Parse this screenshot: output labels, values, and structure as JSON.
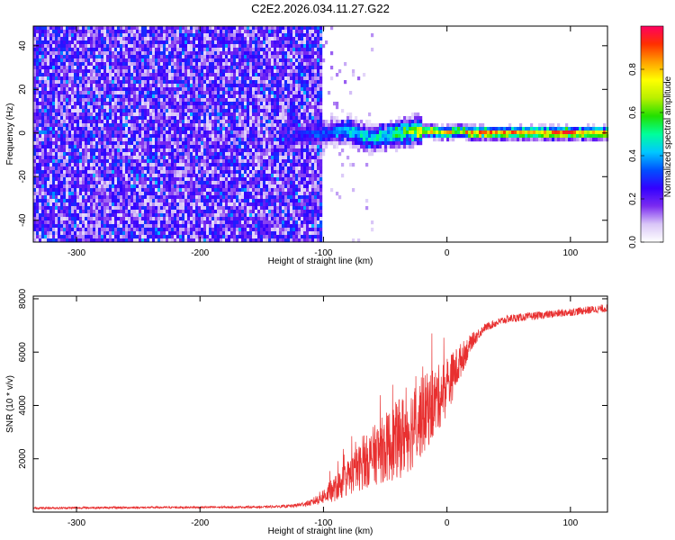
{
  "title": "C2E2.2026.034.11.27.G22",
  "chart_data": [
    {
      "type": "heatmap",
      "name": "spectrogram",
      "xlabel": "Height of straight line (km)",
      "ylabel": "Frequency (Hz)",
      "xlim": [
        -335,
        130
      ],
      "ylim": [
        -50,
        49
      ],
      "xticks": [
        -300,
        -200,
        -100,
        0,
        100
      ],
      "yticks": [
        -40,
        -20,
        0,
        20,
        40
      ],
      "colorbar": {
        "label": "Normalized spectral amplitude",
        "range": [
          0,
          1
        ],
        "ticks": [
          0.0,
          0.2,
          0.4,
          0.6,
          0.8
        ],
        "tick_labels": [
          "0.0",
          "0.2",
          "0.4",
          "0.6",
          "0.8"
        ],
        "colors": [
          "#ffffff",
          "#d9c6f7",
          "#7b2cf0",
          "#3300ff",
          "#0050ff",
          "#00c8ff",
          "#00ff9a",
          "#22e000",
          "#b8f000",
          "#ffff00",
          "#ffa000",
          "#ff3000",
          "#ff0060"
        ]
      },
      "noise_region": {
        "x_range": [
          -335,
          -100
        ],
        "level": "0.15-0.30"
      },
      "signal_track": [
        {
          "x": -130,
          "y": -2,
          "amp": 0.25
        },
        {
          "x": -100,
          "y": 0,
          "amp": 0.35
        },
        {
          "x": -80,
          "y": 1,
          "amp": 0.45
        },
        {
          "x": -60,
          "y": -3,
          "amp": 0.5
        },
        {
          "x": -40,
          "y": 0,
          "amp": 0.6
        },
        {
          "x": -20,
          "y": 1,
          "amp": 0.75
        },
        {
          "x": 0,
          "y": 0,
          "amp": 0.85
        },
        {
          "x": 10,
          "y": 1,
          "amp": 0.7
        },
        {
          "x": 20,
          "y": 0,
          "amp": 0.9
        },
        {
          "x": 60,
          "y": 0,
          "amp": 0.9
        },
        {
          "x": 100,
          "y": 0,
          "amp": 0.9
        },
        {
          "x": 130,
          "y": 0,
          "amp": 0.9
        }
      ]
    },
    {
      "type": "line",
      "name": "snr",
      "xlabel": "Height of straight line (km)",
      "ylabel": "SNR (10 * v/v)",
      "xlim": [
        -335,
        130
      ],
      "ylim": [
        0,
        8100
      ],
      "xticks": [
        -300,
        -200,
        -100,
        0,
        100
      ],
      "yticks": [
        2000,
        4000,
        6000,
        8000
      ],
      "color": "#e83030",
      "series": [
        {
          "name": "SNR",
          "x": [
            -335,
            -300,
            -250,
            -200,
            -150,
            -125,
            -110,
            -100,
            -90,
            -80,
            -70,
            -60,
            -50,
            -40,
            -30,
            -20,
            -10,
            0,
            10,
            20,
            30,
            40,
            50,
            70,
            90,
            110,
            130
          ],
          "values": [
            150,
            160,
            170,
            180,
            190,
            230,
            350,
            600,
            900,
            1300,
            1700,
            2100,
            2400,
            2700,
            3100,
            3600,
            4100,
            4700,
            5600,
            6400,
            6900,
            7100,
            7250,
            7350,
            7450,
            7550,
            7650
          ],
          "noise": [
            40,
            40,
            40,
            40,
            40,
            60,
            120,
            300,
            500,
            700,
            900,
            1100,
            1300,
            1500,
            1600,
            1500,
            1300,
            1100,
            700,
            300,
            150,
            150,
            150,
            150,
            150,
            150,
            150
          ]
        }
      ]
    }
  ]
}
